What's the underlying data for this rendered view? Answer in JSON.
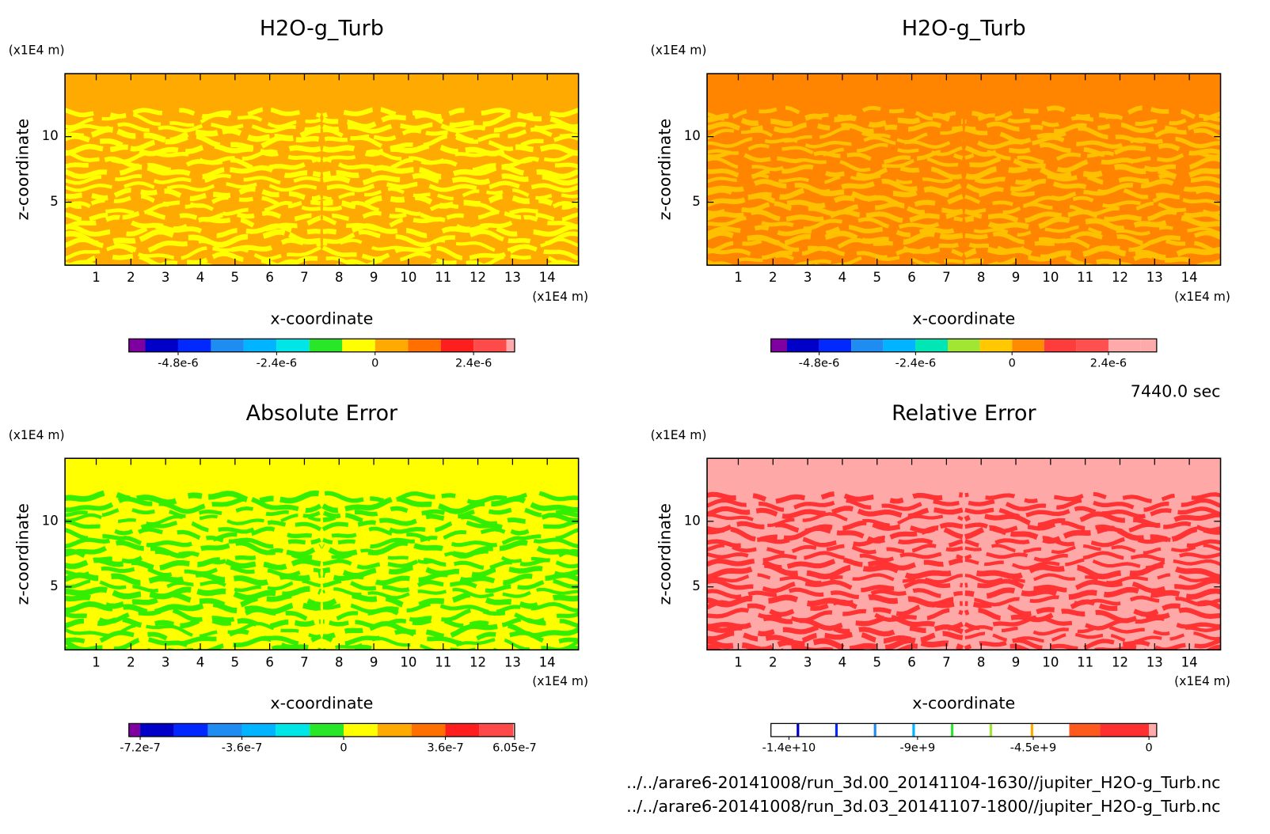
{
  "chart_data": [
    {
      "type": "contour",
      "title": "H2O-g_Turb",
      "x_label": "x-coordinate",
      "y_label": "z-coordinate",
      "x_unit": "(x1E4 m)",
      "y_unit": "(x1E4 m)",
      "xlim": [
        0.1,
        14.9
      ],
      "ylim": [
        0.2,
        14.8
      ],
      "xticks": [
        1,
        2,
        3,
        4,
        5,
        6,
        7,
        8,
        9,
        10,
        11,
        12,
        13,
        14
      ],
      "yticks": [
        5,
        10
      ],
      "field": {
        "base": "#ffaa00",
        "swirl": "#ffff00"
      },
      "colorbar": {
        "levels": [
          -6e-06,
          -5.6e-06,
          -4.8e-06,
          -4e-06,
          -3.2e-06,
          -2.4e-06,
          -1.6e-06,
          -8e-07,
          0,
          8e-07,
          1.6e-06,
          2.4e-06,
          3.2e-06,
          3.4e-06
        ],
        "colors": [
          "#7f00a0",
          "#0000c8",
          "#0028ff",
          "#1e8cf0",
          "#00b4ff",
          "#00e6e6",
          "#28e628",
          "#ffff00",
          "#ffaa00",
          "#ff7000",
          "#ff1e1e",
          "#ff4a4a",
          "#ffaaaa"
        ],
        "ticks": [
          {
            "value": -4.8e-06,
            "label": "-4.8e-6"
          },
          {
            "value": -2.4e-06,
            "label": "-2.4e-6"
          },
          0,
          {
            "value": 2.4e-06,
            "label": "2.4e-6"
          }
        ]
      }
    },
    {
      "type": "contour",
      "title": "H2O-g_Turb",
      "x_label": "x-coordinate",
      "y_label": "z-coordinate",
      "x_unit": "(x1E4 m)",
      "y_unit": "(x1E4 m)",
      "xlim": [
        0.1,
        14.9
      ],
      "ylim": [
        0.2,
        14.8
      ],
      "xticks": [
        1,
        2,
        3,
        4,
        5,
        6,
        7,
        8,
        9,
        10,
        11,
        12,
        13,
        14
      ],
      "yticks": [
        5,
        10
      ],
      "field": {
        "base": "#ff8400",
        "swirl": "#ffc000"
      },
      "colorbar": {
        "levels": [
          -6e-06,
          -5.6e-06,
          -4.8e-06,
          -4e-06,
          -3.2e-06,
          -2.4e-06,
          -1.6e-06,
          -8e-07,
          0,
          8e-07,
          1.6e-06,
          2.4e-06,
          3.2e-06,
          3.6e-06
        ],
        "colors": [
          "#7f00a0",
          "#0000c8",
          "#0028ff",
          "#1e8cf0",
          "#00b4ff",
          "#00e6b4",
          "#a0e632",
          "#ffc800",
          "#ff8c00",
          "#ff3c3c",
          "#ff5050",
          "#ffaaaa",
          "#ffaaaa"
        ],
        "ticks": [
          {
            "value": -4.8e-06,
            "label": "-4.8e-6"
          },
          {
            "value": -2.4e-06,
            "label": "-2.4e-6"
          },
          0,
          {
            "value": 2.4e-06,
            "label": "2.4e-6"
          }
        ]
      }
    },
    {
      "type": "contour",
      "title": "Absolute Error",
      "x_label": "x-coordinate",
      "y_label": "z-coordinate",
      "x_unit": "(x1E4 m)",
      "y_unit": "(x1E4 m)",
      "xlim": [
        0.1,
        14.9
      ],
      "ylim": [
        0.2,
        14.8
      ],
      "xticks": [
        1,
        2,
        3,
        4,
        5,
        6,
        7,
        8,
        9,
        10,
        11,
        12,
        13,
        14
      ],
      "yticks": [
        5,
        10
      ],
      "field": {
        "base": "#ffff00",
        "swirl": "#33ee00"
      },
      "colorbar": {
        "levels": [
          -7.6e-07,
          -7.2e-07,
          -6e-07,
          -4.8e-07,
          -3.6e-07,
          -2.4e-07,
          -1.2e-07,
          0,
          1.2e-07,
          2.4e-07,
          3.6e-07,
          4.8e-07,
          6e-07,
          6.05e-07
        ],
        "colors": [
          "#7f00a0",
          "#0000c8",
          "#0028ff",
          "#1e8cf0",
          "#00b4ff",
          "#00e6e6",
          "#28e628",
          "#ffff00",
          "#ffaa00",
          "#ff7000",
          "#ff1e1e",
          "#ff4a4a",
          "#ffaaaa"
        ],
        "ticks": [
          {
            "value": -7.2e-07,
            "label": "-7.2e-7"
          },
          {
            "value": -3.6e-07,
            "label": "-3.6e-7"
          },
          0,
          {
            "value": 3.6e-07,
            "label": "3.6e-7"
          },
          {
            "value": 6.05e-07,
            "label": "6.05e-7"
          }
        ]
      }
    },
    {
      "type": "contour",
      "title": "Relative Error",
      "x_label": "x-coordinate",
      "y_label": "z-coordinate",
      "x_unit": "(x1E4 m)",
      "y_unit": "(x1E4 m)",
      "xlim": [
        0.1,
        14.9
      ],
      "ylim": [
        0.2,
        14.8
      ],
      "xticks": [
        1,
        2,
        3,
        4,
        5,
        6,
        7,
        8,
        9,
        10,
        11,
        12,
        13,
        14
      ],
      "yticks": [
        5,
        10
      ],
      "field": {
        "base": "#ffa8a8",
        "swirl": "#ff3333"
      },
      "colorbar": {
        "levels": [
          -14700000000.0,
          -13700000000.0,
          -13600000000.0,
          -12200000000.0,
          -12100000000.0,
          -10700000000.0,
          -10600000000.0,
          -9200000000.0,
          -9100000000.0,
          -7700000000.0,
          -7600000000.0,
          -6200000000.0,
          -6100000000.0,
          -4600000000.0,
          -4500000000.0,
          -3100000000.0,
          -1900000000.0,
          0,
          300000000.0
        ],
        "colors": [
          "#ffffff",
          "#0000c8",
          "#ffffff",
          "#0028ff",
          "#ffffff",
          "#1e8cf0",
          "#ffffff",
          "#00b4ff",
          "#ffffff",
          "#28e628",
          "#ffffff",
          "#a0e632",
          "#ffffff",
          "#ffaa00",
          "#ffffff",
          "#ff5a1e",
          "#ff3030",
          "#ffaaaa"
        ],
        "ticks": [
          {
            "value": -14000000000.0,
            "label": "-1.4e+10"
          },
          {
            "value": -9000000000.0,
            "label": "-9e+9"
          },
          {
            "value": -4500000000.0,
            "label": "-4.5e+9"
          },
          0
        ]
      }
    }
  ],
  "time": "7440.0 sec",
  "files": [
    "../../arare6-20141008/run_3d.00_20141104-1630//jupiter_H2O-g_Turb.nc",
    "../../arare6-20141008/run_3d.03_20141107-1800//jupiter_H2O-g_Turb.nc"
  ]
}
